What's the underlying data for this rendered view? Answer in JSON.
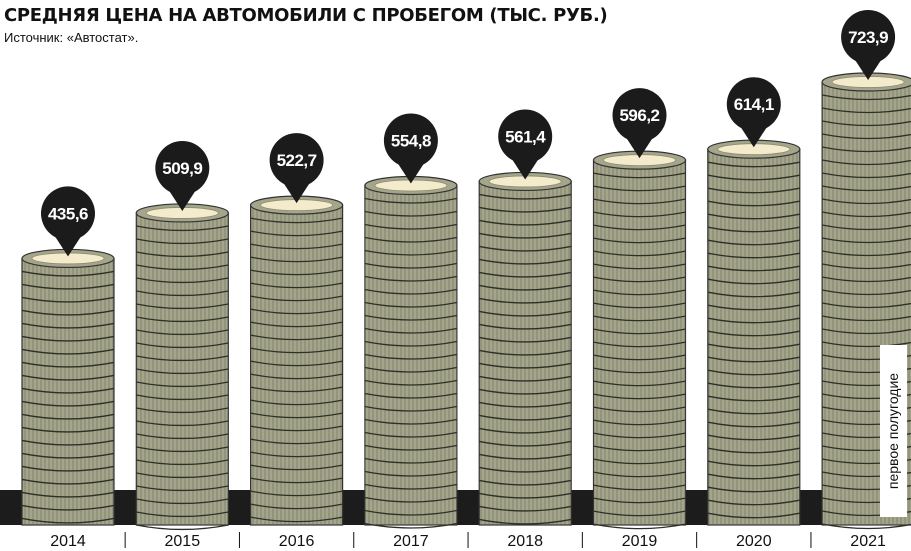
{
  "chart_data": {
    "type": "bar",
    "title": "СРЕДНЯЯ ЦЕНА НА АВТОМОБИЛИ С ПРОБЕГОМ (ТЫС. РУБ.)",
    "subtitle": "Источник: «Автостат».",
    "categories": [
      "2014",
      "2015",
      "2016",
      "2017",
      "2018",
      "2019",
      "2020",
      "2021"
    ],
    "values": [
      435.6,
      509.9,
      522.7,
      554.8,
      561.4,
      596.2,
      614.1,
      723.9
    ],
    "value_labels": [
      "435,6",
      "509,9",
      "522,7",
      "554,8",
      "561,4",
      "596,2",
      "614,1",
      "723,9"
    ],
    "color": "#a4a58a",
    "annotation": "первое полугодие"
  }
}
